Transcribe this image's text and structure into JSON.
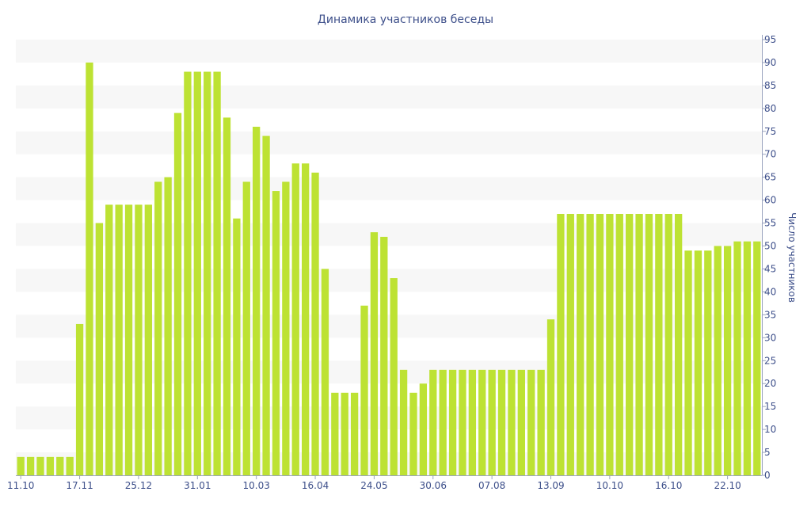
{
  "chart_data": {
    "type": "bar",
    "title": "Динамика участников беседы",
    "xlabel": "",
    "ylabel": "Число участников",
    "ylim": [
      0,
      95
    ],
    "y_ticks": [
      0,
      5,
      10,
      15,
      20,
      25,
      30,
      35,
      40,
      45,
      50,
      55,
      60,
      65,
      70,
      75,
      80,
      85,
      90,
      95
    ],
    "y_axis_side": "right",
    "grid": "alternating horizontal bands",
    "legend": "none",
    "x_tick_labels": [
      {
        "index": 0,
        "label": "11.10"
      },
      {
        "index": 6,
        "label": "17.11"
      },
      {
        "index": 12,
        "label": "25.12"
      },
      {
        "index": 18,
        "label": "31.01"
      },
      {
        "index": 24,
        "label": "10.03"
      },
      {
        "index": 30,
        "label": "16.04"
      },
      {
        "index": 36,
        "label": "24.05"
      },
      {
        "index": 42,
        "label": "30.06"
      },
      {
        "index": 48,
        "label": "07.08"
      },
      {
        "index": 54,
        "label": "13.09"
      },
      {
        "index": 60,
        "label": "10.10"
      },
      {
        "index": 66,
        "label": "16.10"
      },
      {
        "index": 72,
        "label": "22.10"
      }
    ],
    "values": [
      4,
      4,
      4,
      4,
      4,
      4,
      33,
      90,
      55,
      59,
      59,
      59,
      59,
      59,
      64,
      65,
      79,
      88,
      88,
      88,
      88,
      78,
      56,
      64,
      76,
      74,
      62,
      64,
      68,
      68,
      66,
      45,
      18,
      18,
      18,
      37,
      53,
      52,
      43,
      23,
      18,
      20,
      23,
      23,
      23,
      23,
      23,
      23,
      23,
      23,
      23,
      23,
      23,
      23,
      34,
      57,
      57,
      57,
      57,
      57,
      57,
      57,
      57,
      57,
      57,
      57,
      57,
      57,
      49,
      49,
      49,
      50,
      50,
      51,
      51,
      51
    ],
    "colors": {
      "bar": "#bde233",
      "band": "#f7f7f7",
      "text": "#3d4f8a",
      "axis": "#9aa3be"
    }
  }
}
